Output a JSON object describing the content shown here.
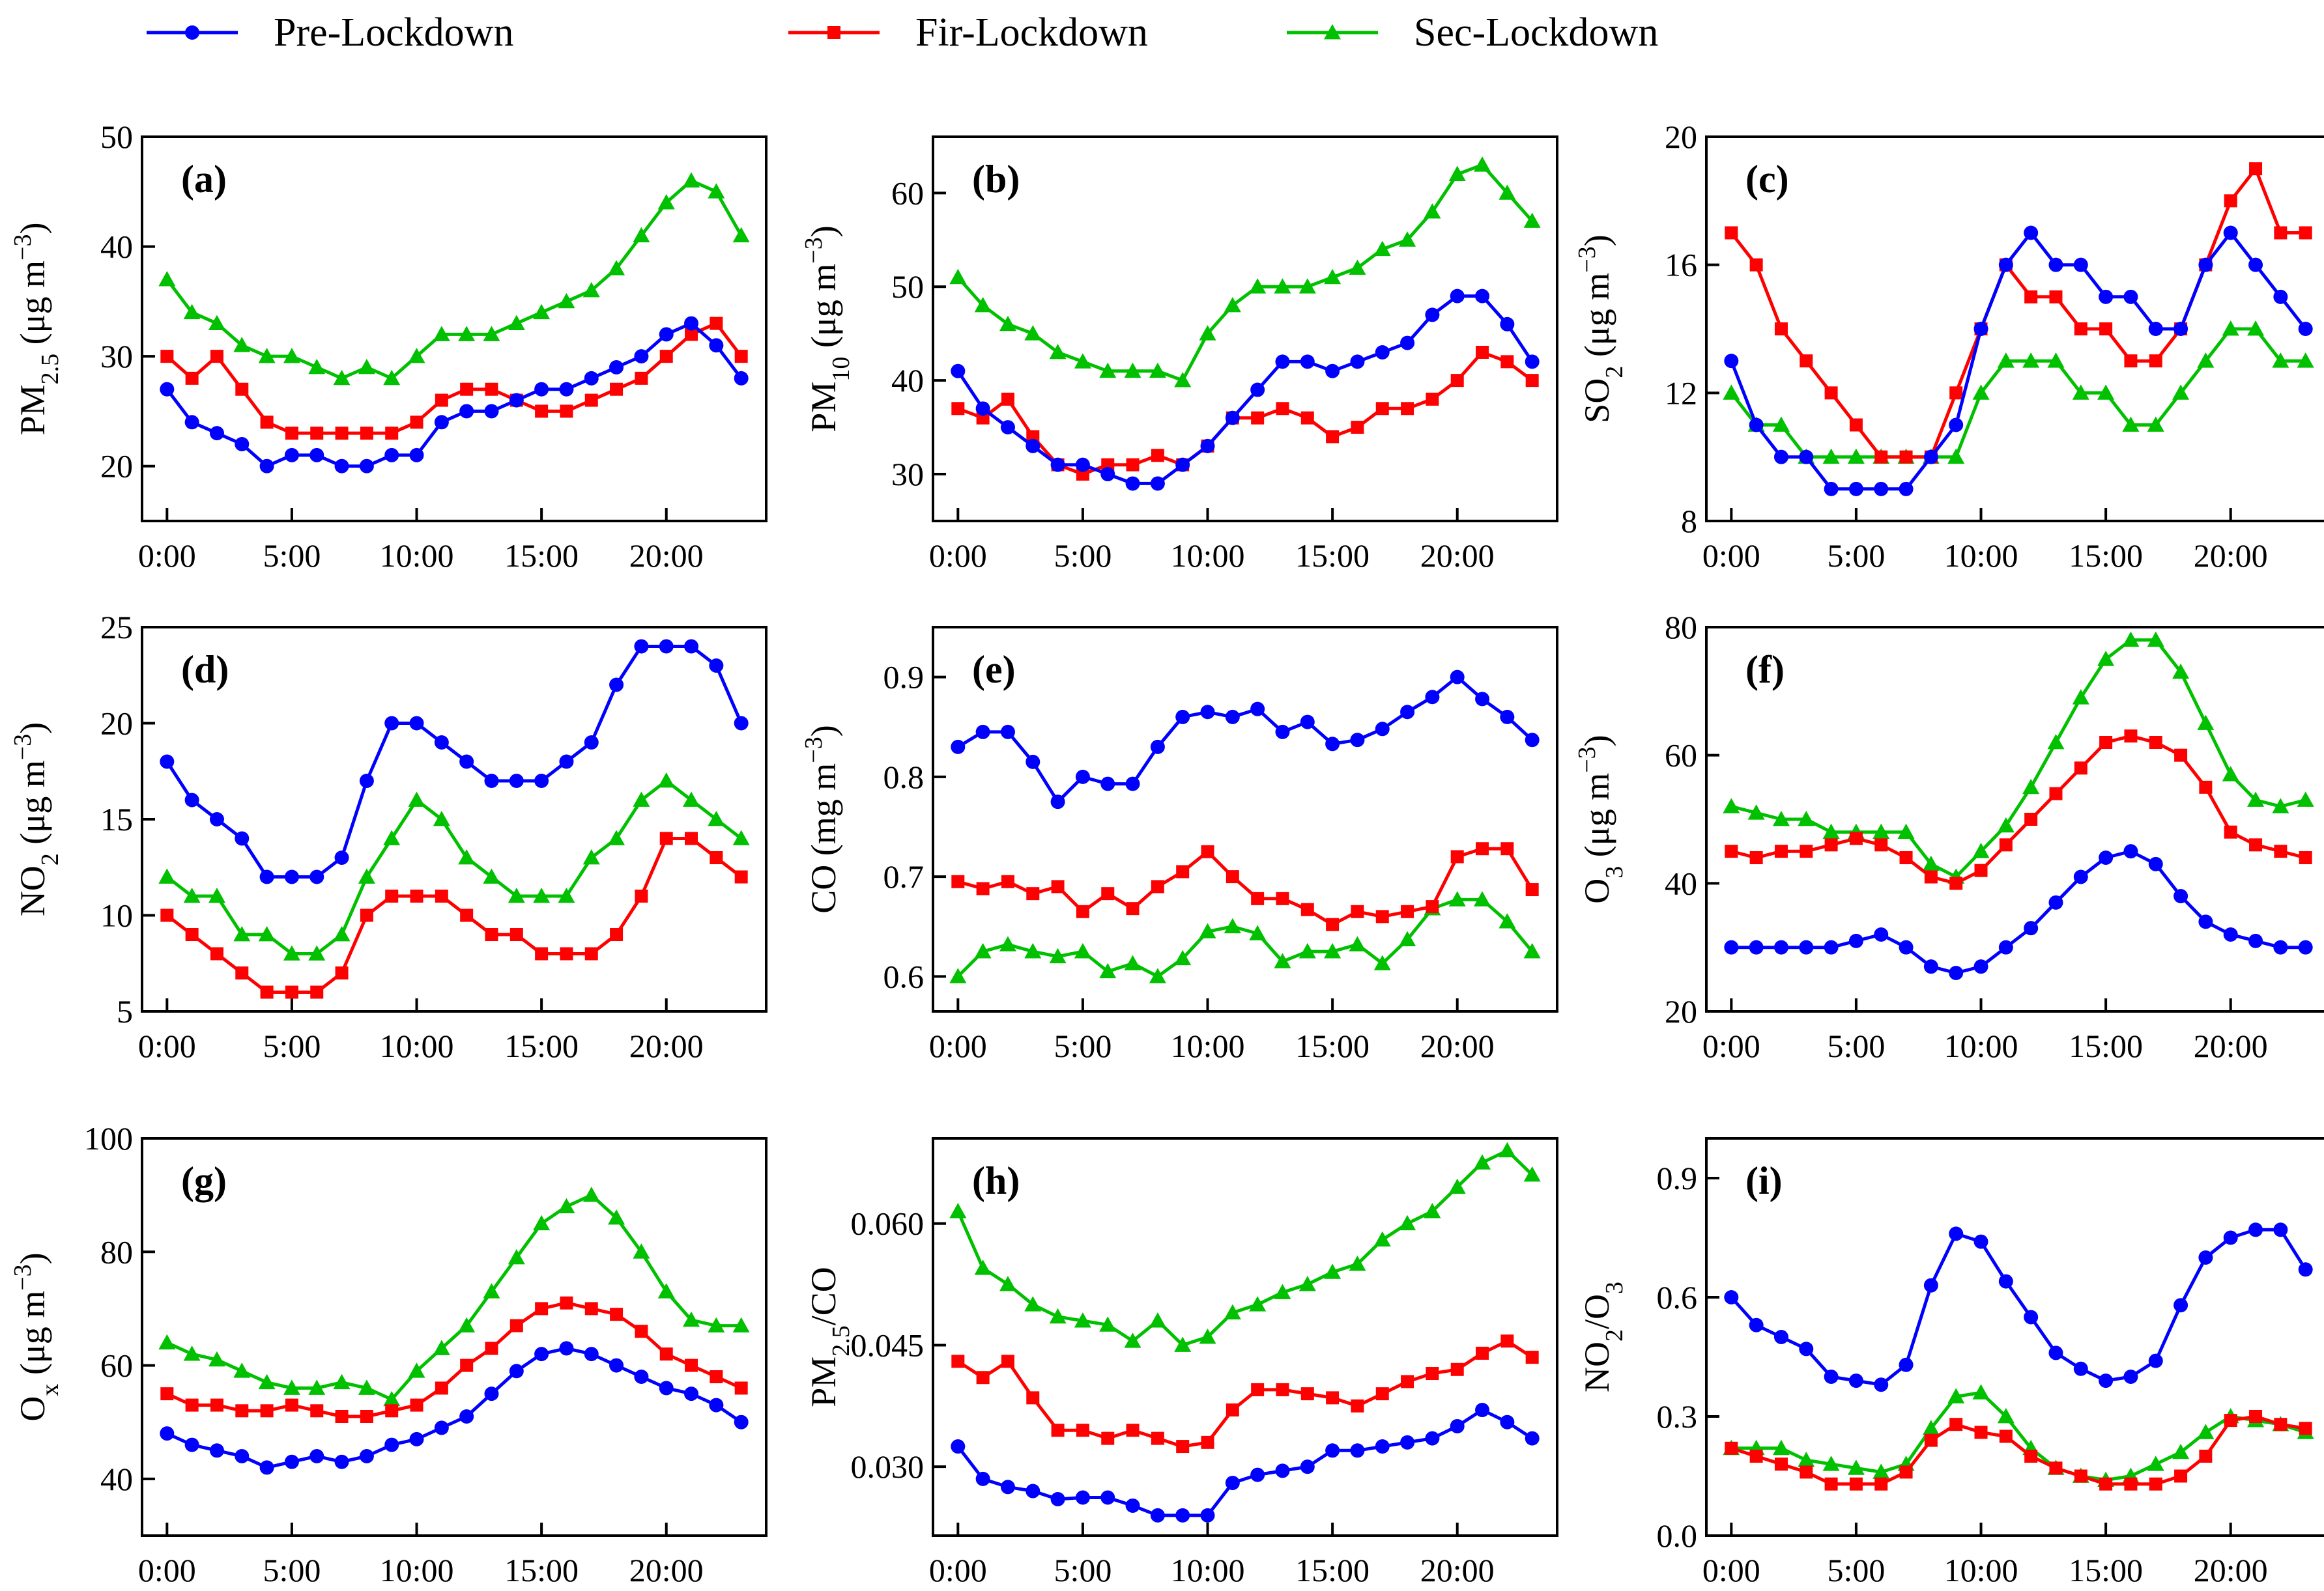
{
  "legend": [
    {
      "name": "Pre-Lockdown",
      "color": "#0000ff",
      "marker": "circle"
    },
    {
      "name": "Fir-Lockdown",
      "color": "#ff0000",
      "marker": "square"
    },
    {
      "name": "Sec-Lockdown",
      "color": "#00c000",
      "marker": "triangle"
    }
  ],
  "chart_data": [
    {
      "type": "line",
      "panel_label": "(a)",
      "ylabel": {
        "base": "PM",
        "sub": "2.5",
        "unit": " (μg m",
        "sup": "−3",
        "close": ")"
      },
      "xlim": [
        -1,
        24
      ],
      "ylim": [
        15,
        50
      ],
      "yticks": [
        20,
        30,
        40,
        50
      ],
      "ytick_labels": [
        "20",
        "30",
        "40",
        "50"
      ],
      "xticks": [
        0,
        5,
        10,
        15,
        20
      ],
      "xtick_labels": [
        "0:00",
        "5:00",
        "10:00",
        "15:00",
        "20:00"
      ],
      "series": [
        {
          "name": "Pre-Lockdown",
          "values": [
            27,
            24,
            23,
            22,
            20,
            21,
            21,
            20,
            20,
            21,
            21,
            24,
            25,
            25,
            26,
            27,
            27,
            28,
            29,
            30,
            32,
            33,
            31,
            28
          ]
        },
        {
          "name": "Fir-Lockdown",
          "values": [
            30,
            28,
            30,
            27,
            24,
            23,
            23,
            23,
            23,
            23,
            24,
            26,
            27,
            27,
            26,
            25,
            25,
            26,
            27,
            28,
            30,
            32,
            33,
            30
          ]
        },
        {
          "name": "Sec-Lockdown",
          "values": [
            37,
            34,
            33,
            31,
            30,
            30,
            29,
            28,
            29,
            28,
            30,
            32,
            32,
            32,
            33,
            34,
            35,
            36,
            38,
            41,
            44,
            46,
            45,
            41
          ]
        }
      ]
    },
    {
      "type": "line",
      "panel_label": "(b)",
      "ylabel": {
        "base": "PM",
        "sub": "10",
        "unit": " (μg m",
        "sup": "−3",
        "close": ")"
      },
      "xlim": [
        -1,
        24
      ],
      "ylim": [
        25,
        66
      ],
      "yticks": [
        30,
        40,
        50,
        60
      ],
      "ytick_labels": [
        "30",
        "40",
        "50",
        "60"
      ],
      "xticks": [
        0,
        5,
        10,
        15,
        20
      ],
      "xtick_labels": [
        "0:00",
        "5:00",
        "10:00",
        "15:00",
        "20:00"
      ],
      "series": [
        {
          "name": "Pre-Lockdown",
          "values": [
            41,
            37,
            35,
            33,
            31,
            31,
            30,
            29,
            29,
            31,
            33,
            36,
            39,
            42,
            42,
            41,
            42,
            43,
            44,
            47,
            49,
            49,
            46,
            42
          ]
        },
        {
          "name": "Fir-Lockdown",
          "values": [
            37,
            36,
            38,
            34,
            31,
            30,
            31,
            31,
            32,
            31,
            33,
            36,
            36,
            37,
            36,
            34,
            35,
            37,
            37,
            38,
            40,
            43,
            42,
            40
          ]
        },
        {
          "name": "Sec-Lockdown",
          "values": [
            51,
            48,
            46,
            45,
            43,
            42,
            41,
            41,
            41,
            40,
            45,
            48,
            50,
            50,
            50,
            51,
            52,
            54,
            55,
            58,
            62,
            63,
            60,
            57
          ]
        }
      ]
    },
    {
      "type": "line",
      "panel_label": "(c)",
      "ylabel": {
        "base": "SO",
        "sub": "2",
        "unit": " (μg m",
        "sup": "−3",
        "close": ")"
      },
      "xlim": [
        -1,
        24
      ],
      "ylim": [
        8,
        20
      ],
      "yticks": [
        8,
        12,
        16,
        20
      ],
      "ytick_labels": [
        "8",
        "12",
        "16",
        "20"
      ],
      "xticks": [
        0,
        5,
        10,
        15,
        20
      ],
      "xtick_labels": [
        "0:00",
        "5:00",
        "10:00",
        "15:00",
        "20:00"
      ],
      "series": [
        {
          "name": "Pre-Lockdown",
          "values": [
            13,
            11,
            10,
            10,
            9,
            9,
            9,
            9,
            10,
            11,
            14,
            16,
            17,
            16,
            16,
            15,
            15,
            14,
            14,
            16,
            17,
            16,
            15,
            14
          ]
        },
        {
          "name": "Fir-Lockdown",
          "values": [
            17,
            16,
            14,
            13,
            12,
            11,
            10,
            10,
            10,
            12,
            14,
            16,
            15,
            15,
            14,
            14,
            13,
            13,
            14,
            16,
            18,
            19,
            17,
            17
          ]
        },
        {
          "name": "Sec-Lockdown",
          "values": [
            12,
            11,
            11,
            10,
            10,
            10,
            10,
            10,
            10,
            10,
            12,
            13,
            13,
            13,
            12,
            12,
            11,
            11,
            12,
            13,
            14,
            14,
            13,
            13
          ]
        }
      ]
    },
    {
      "type": "line",
      "panel_label": "(d)",
      "ylabel": {
        "base": "NO",
        "sub": "2",
        "unit": " (μg m",
        "sup": "−3",
        "close": ")"
      },
      "xlim": [
        -1,
        24
      ],
      "ylim": [
        5,
        25
      ],
      "yticks": [
        5,
        10,
        15,
        20,
        25
      ],
      "ytick_labels": [
        "5",
        "10",
        "15",
        "20",
        "25"
      ],
      "xticks": [
        0,
        5,
        10,
        15,
        20
      ],
      "xtick_labels": [
        "0:00",
        "5:00",
        "10:00",
        "15:00",
        "20:00"
      ],
      "series": [
        {
          "name": "Pre-Lockdown",
          "values": [
            18,
            16,
            15,
            14,
            12,
            12,
            12,
            13,
            17,
            20,
            20,
            19,
            18,
            17,
            17,
            17,
            18,
            19,
            22,
            24,
            24,
            24,
            23,
            20
          ]
        },
        {
          "name": "Fir-Lockdown",
          "values": [
            10,
            9,
            8,
            7,
            6,
            6,
            6,
            7,
            10,
            11,
            11,
            11,
            10,
            9,
            9,
            8,
            8,
            8,
            9,
            11,
            14,
            14,
            13,
            12
          ]
        },
        {
          "name": "Sec-Lockdown",
          "values": [
            12,
            11,
            11,
            9,
            9,
            8,
            8,
            9,
            12,
            14,
            16,
            15,
            13,
            12,
            11,
            11,
            11,
            13,
            14,
            16,
            17,
            16,
            15,
            14
          ]
        }
      ]
    },
    {
      "type": "line",
      "panel_label": "(e)",
      "ylabel": {
        "base": "CO (mg m",
        "sub": "",
        "unit": "",
        "sup": "−3",
        "close": ")"
      },
      "xlim": [
        -1,
        24
      ],
      "ylim": [
        0.565,
        0.95
      ],
      "yticks": [
        0.6,
        0.7,
        0.8,
        0.9
      ],
      "ytick_labels": [
        "0.6",
        "0.7",
        "0.8",
        "0.9"
      ],
      "xticks": [
        0,
        5,
        10,
        15,
        20
      ],
      "xtick_labels": [
        "0:00",
        "5:00",
        "10:00",
        "15:00",
        "20:00"
      ],
      "series": [
        {
          "name": "Pre-Lockdown",
          "values": [
            0.83,
            0.845,
            0.845,
            0.815,
            0.775,
            0.8,
            0.793,
            0.793,
            0.83,
            0.86,
            0.865,
            0.86,
            0.868,
            0.845,
            0.855,
            0.833,
            0.837,
            0.848,
            0.865,
            0.88,
            0.9,
            0.878,
            0.86,
            0.837
          ]
        },
        {
          "name": "Fir-Lockdown",
          "values": [
            0.695,
            0.688,
            0.695,
            0.683,
            0.69,
            0.665,
            0.683,
            0.668,
            0.69,
            0.705,
            0.725,
            0.7,
            0.678,
            0.678,
            0.667,
            0.652,
            0.665,
            0.66,
            0.665,
            0.67,
            0.72,
            0.728,
            0.728,
            0.687
          ]
        },
        {
          "name": "Sec-Lockdown",
          "values": [
            0.6,
            0.625,
            0.632,
            0.625,
            0.62,
            0.625,
            0.605,
            0.613,
            0.6,
            0.618,
            0.645,
            0.65,
            0.643,
            0.615,
            0.625,
            0.625,
            0.632,
            0.613,
            0.637,
            0.668,
            0.677,
            0.677,
            0.655,
            0.625
          ]
        }
      ]
    },
    {
      "type": "line",
      "panel_label": "(f)",
      "ylabel": {
        "base": "O",
        "sub": "3",
        "unit": " (μg m",
        "sup": "−3",
        "close": ")"
      },
      "xlim": [
        -1,
        24
      ],
      "ylim": [
        20,
        80
      ],
      "yticks": [
        20,
        40,
        60,
        80
      ],
      "ytick_labels": [
        "20",
        "40",
        "60",
        "80"
      ],
      "xticks": [
        0,
        5,
        10,
        15,
        20
      ],
      "xtick_labels": [
        "0:00",
        "5:00",
        "10:00",
        "15:00",
        "20:00"
      ],
      "series": [
        {
          "name": "Pre-Lockdown",
          "values": [
            30,
            30,
            30,
            30,
            30,
            31,
            32,
            30,
            27,
            26,
            27,
            30,
            33,
            37,
            41,
            44,
            45,
            43,
            38,
            34,
            32,
            31,
            30,
            30
          ]
        },
        {
          "name": "Fir-Lockdown",
          "values": [
            45,
            44,
            45,
            45,
            46,
            47,
            46,
            44,
            41,
            40,
            42,
            46,
            50,
            54,
            58,
            62,
            63,
            62,
            60,
            55,
            48,
            46,
            45,
            44
          ]
        },
        {
          "name": "Sec-Lockdown",
          "values": [
            52,
            51,
            50,
            50,
            48,
            48,
            48,
            48,
            43,
            41,
            45,
            49,
            55,
            62,
            69,
            75,
            78,
            78,
            73,
            65,
            57,
            53,
            52,
            53
          ]
        }
      ]
    },
    {
      "type": "line",
      "panel_label": "(g)",
      "ylabel": {
        "base": "O",
        "sub": "x",
        "unit": " (μg m",
        "sup": "−3",
        "close": ")"
      },
      "xlim": [
        -1,
        24
      ],
      "ylim": [
        30,
        100
      ],
      "yticks": [
        40,
        60,
        80,
        100
      ],
      "ytick_labels": [
        "40",
        "60",
        "80",
        "100"
      ],
      "xticks": [
        0,
        5,
        10,
        15,
        20
      ],
      "xtick_labels": [
        "0:00",
        "5:00",
        "10:00",
        "15:00",
        "20:00"
      ],
      "series": [
        {
          "name": "Pre-Lockdown",
          "values": [
            48,
            46,
            45,
            44,
            42,
            43,
            44,
            43,
            44,
            46,
            47,
            49,
            51,
            55,
            59,
            62,
            63,
            62,
            60,
            58,
            56,
            55,
            53,
            50
          ]
        },
        {
          "name": "Fir-Lockdown",
          "values": [
            55,
            53,
            53,
            52,
            52,
            53,
            52,
            51,
            51,
            52,
            53,
            56,
            60,
            63,
            67,
            70,
            71,
            70,
            69,
            66,
            62,
            60,
            58,
            56
          ]
        },
        {
          "name": "Sec-Lockdown",
          "values": [
            64,
            62,
            61,
            59,
            57,
            56,
            56,
            57,
            56,
            54,
            59,
            63,
            67,
            73,
            79,
            85,
            88,
            90,
            86,
            80,
            73,
            68,
            67,
            67
          ]
        }
      ]
    },
    {
      "type": "line",
      "panel_label": "(h)",
      "ylabel": {
        "base": "PM",
        "sub": "2.5",
        "unit": "/CO",
        "sup": "",
        "close": ""
      },
      "xlim": [
        -1,
        24
      ],
      "ylim": [
        0.0215,
        0.0705
      ],
      "yticks": [
        0.03,
        0.045,
        0.06
      ],
      "ytick_labels": [
        "0.030",
        "0.045",
        "0.060"
      ],
      "xticks": [
        0,
        5,
        10,
        15,
        20
      ],
      "xtick_labels": [
        "0:00",
        "5:00",
        "10:00",
        "15:00",
        "20:00"
      ],
      "series": [
        {
          "name": "Pre-Lockdown",
          "values": [
            0.0325,
            0.0285,
            0.0275,
            0.027,
            0.026,
            0.0262,
            0.0262,
            0.0252,
            0.024,
            0.024,
            0.024,
            0.028,
            0.029,
            0.0295,
            0.03,
            0.032,
            0.032,
            0.0325,
            0.033,
            0.0335,
            0.035,
            0.037,
            0.0355,
            0.0335
          ]
        },
        {
          "name": "Fir-Lockdown",
          "values": [
            0.043,
            0.041,
            0.043,
            0.0385,
            0.0345,
            0.0345,
            0.0335,
            0.0345,
            0.0335,
            0.0325,
            0.033,
            0.037,
            0.0395,
            0.0395,
            0.039,
            0.0385,
            0.0375,
            0.039,
            0.0405,
            0.0415,
            0.042,
            0.044,
            0.0455,
            0.0435
          ]
        },
        {
          "name": "Sec-Lockdown",
          "values": [
            0.0615,
            0.0545,
            0.0525,
            0.05,
            0.0485,
            0.048,
            0.0475,
            0.0455,
            0.048,
            0.045,
            0.046,
            0.049,
            0.05,
            0.0515,
            0.0525,
            0.054,
            0.055,
            0.058,
            0.06,
            0.0615,
            0.0645,
            0.0675,
            0.069,
            0.066
          ]
        }
      ]
    },
    {
      "type": "line",
      "panel_label": "(i)",
      "ylabel": {
        "base": "NO",
        "sub": "2",
        "unit": "/O",
        "sup": "",
        "close": "",
        "sub2": "3"
      },
      "xlim": [
        -1,
        24
      ],
      "ylim": [
        0.0,
        1.0
      ],
      "yticks": [
        0.0,
        0.3,
        0.6,
        0.9
      ],
      "ytick_labels": [
        "0.0",
        "0.3",
        "0.6",
        "0.9"
      ],
      "xticks": [
        0,
        5,
        10,
        15,
        20
      ],
      "xtick_labels": [
        "0:00",
        "5:00",
        "10:00",
        "15:00",
        "20:00"
      ],
      "series": [
        {
          "name": "Pre-Lockdown",
          "values": [
            0.6,
            0.53,
            0.5,
            0.47,
            0.4,
            0.39,
            0.38,
            0.43,
            0.63,
            0.76,
            0.74,
            0.64,
            0.55,
            0.46,
            0.42,
            0.39,
            0.4,
            0.44,
            0.58,
            0.7,
            0.75,
            0.77,
            0.77,
            0.67
          ]
        },
        {
          "name": "Fir-Lockdown",
          "values": [
            0.22,
            0.2,
            0.18,
            0.16,
            0.13,
            0.13,
            0.13,
            0.16,
            0.24,
            0.28,
            0.26,
            0.25,
            0.2,
            0.17,
            0.15,
            0.13,
            0.13,
            0.13,
            0.15,
            0.2,
            0.29,
            0.3,
            0.28,
            0.27
          ]
        },
        {
          "name": "Sec-Lockdown",
          "values": [
            0.22,
            0.22,
            0.22,
            0.19,
            0.18,
            0.17,
            0.16,
            0.18,
            0.27,
            0.35,
            0.36,
            0.3,
            0.22,
            0.17,
            0.15,
            0.14,
            0.15,
            0.18,
            0.21,
            0.26,
            0.3,
            0.29,
            0.28,
            0.26
          ]
        }
      ]
    }
  ]
}
